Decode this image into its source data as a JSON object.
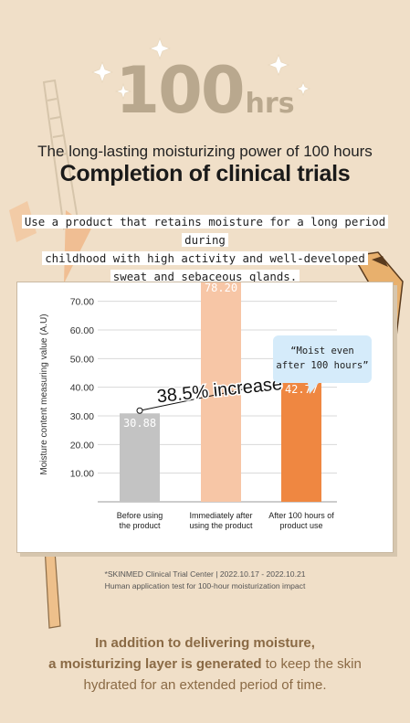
{
  "hero": {
    "number": "100",
    "unit": "hrs"
  },
  "title": {
    "line1": "The long-lasting moisturizing power of 100 hours",
    "line2": "Completion of clinical trials"
  },
  "description": {
    "line1": "Use a product that retains moisture for a long period during",
    "line2": "childhood with high activity and well-developed",
    "line3": "sweat and sebaceous glands."
  },
  "chart_data": {
    "type": "bar",
    "ylabel": "Moisture content measuring value (A.U)",
    "ylim": [
      0,
      75
    ],
    "ytick_values": [
      10,
      20,
      30,
      40,
      50,
      60,
      70
    ],
    "yticks": [
      "10.00",
      "20.00",
      "30.00",
      "40.00",
      "50.00",
      "60.00",
      "70.00"
    ],
    "grid": true,
    "categories": [
      [
        "Before using",
        "the product"
      ],
      [
        "Immediately after",
        "using the product"
      ],
      [
        "After 100 hours of",
        "product use"
      ]
    ],
    "values": [
      30.88,
      78.2,
      42.77
    ],
    "value_labels": [
      "30.88",
      "78.20",
      "42.77"
    ],
    "colors": [
      "#c3c3c3",
      "#f7c6a6",
      "#ef8741"
    ],
    "annotation": "38.5% increase",
    "callout": {
      "line1": "Moist even",
      "line2": "after 100 hours",
      "color": "#d5ebfa"
    }
  },
  "footnote": {
    "line1": "*SKINMED Clinical Trial Center | 2022.10.17 - 2022.10.21",
    "line2": "Human application test for 100-hour moisturization impact"
  },
  "bottom_text": {
    "line1": "In addition to delivering moisture,",
    "line2_bold": "a moisturizing layer is generated",
    "line2_rest": " to keep the skin",
    "line3": "hydrated for an extended period of time."
  },
  "colors": {
    "background": "#f0dfc8",
    "accent_brown": "#8a6a45",
    "hero": "#b9a88e"
  }
}
